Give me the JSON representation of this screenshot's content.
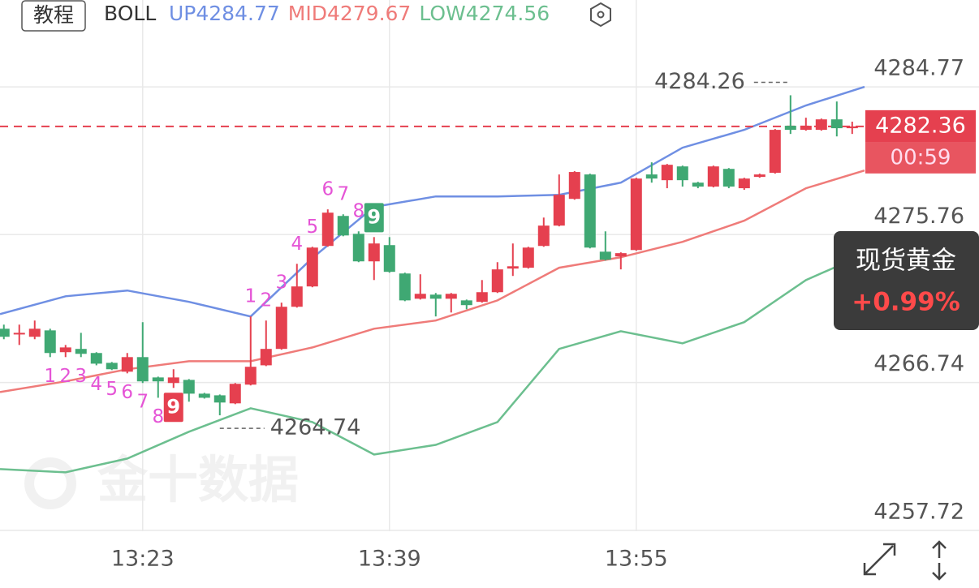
{
  "chart_data": {
    "type": "candlestick",
    "header": {
      "button": "教程",
      "indicator": "BOLL"
    },
    "x": [
      0,
      1,
      2,
      3,
      4,
      5,
      6,
      7,
      8,
      9,
      10,
      11,
      12,
      13,
      14,
      15,
      16,
      17,
      18,
      19,
      20,
      21,
      22,
      23,
      24,
      25,
      26,
      27,
      28,
      29,
      30,
      31,
      32,
      33,
      34,
      35,
      36,
      37,
      38,
      39,
      40,
      41,
      42,
      43,
      44,
      45,
      46,
      47,
      48,
      49,
      50,
      51,
      52,
      53,
      54,
      55
    ],
    "open": [
      4270.02,
      4269.67,
      4269.53,
      4269.92,
      4268.59,
      4268.79,
      4268.54,
      4267.94,
      4267.4,
      4268.29,
      4267.05,
      4266.71,
      4266.9,
      4266.06,
      4265.96,
      4265.47,
      4266.61,
      4267.79,
      4268.79,
      4271.36,
      4272.6,
      4275.07,
      4276.9,
      4275.81,
      4274.13,
      4275.12,
      4273.39,
      4271.85,
      4272.1,
      4271.85,
      4271.75,
      4271.66,
      4272.25,
      4273.69,
      4273.74,
      4275.07,
      4276.31,
      4277.94,
      4279.43,
      4274.72,
      4274.43,
      4274.82,
      4279.43,
      4279.08,
      4279.92,
      4278.93,
      4278.69,
      4279.77,
      4278.59,
      4279.28,
      4279.53,
      4282.4,
      4282.15,
      4282.15,
      4282.79,
      4282.25
    ],
    "high": [
      4270.27,
      4270.27,
      4270.52,
      4270.02,
      4269.03,
      4269.77,
      4268.59,
      4267.99,
      4268.54,
      4270.42,
      4267.1,
      4267.55,
      4266.95,
      4266.11,
      4266.01,
      4266.71,
      4270.77,
      4270.52,
      4271.61,
      4273.98,
      4275.02,
      4277.3,
      4277.0,
      4275.96,
      4275.61,
      4275.61,
      4273.44,
      4273.34,
      4272.2,
      4272.2,
      4271.8,
      4272.99,
      4274.08,
      4275.22,
      4275.02,
      4276.8,
      4279.43,
      4279.63,
      4279.48,
      4275.96,
      4274.68,
      4279.23,
      4280.17,
      4280.07,
      4279.97,
      4278.98,
      4279.97,
      4279.82,
      4279.23,
      4279.48,
      4282.2,
      4284.26,
      4282.89,
      4282.84,
      4283.88,
      4282.65
    ],
    "low": [
      4269.38,
      4269.03,
      4269.38,
      4268.29,
      4268.29,
      4268.29,
      4267.79,
      4267.5,
      4267.3,
      4266.71,
      4265.81,
      4266.41,
      4265.57,
      4265.76,
      4264.74,
      4265.42,
      4266.56,
      4267.74,
      4268.74,
      4271.31,
      4272.55,
      4275.02,
      4275.66,
      4274.08,
      4272.99,
      4273.44,
      4271.7,
      4271.8,
      4270.77,
      4271.01,
      4271.21,
      4271.61,
      4272.2,
      4273.24,
      4273.69,
      4275.02,
      4276.26,
      4277.89,
      4274.92,
      4274.18,
      4273.64,
      4274.77,
      4278.93,
      4278.59,
      4278.69,
      4278.59,
      4278.64,
      4278.59,
      4278.49,
      4279.23,
      4279.48,
      4281.9,
      4282.1,
      4282.1,
      4281.75,
      4281.9
    ],
    "close": [
      4269.53,
      4269.77,
      4270.02,
      4268.54,
      4268.88,
      4268.49,
      4267.89,
      4267.55,
      4268.29,
      4266.81,
      4266.81,
      4267.05,
      4266.06,
      4265.81,
      4265.52,
      4266.66,
      4267.7,
      4268.79,
      4271.36,
      4272.6,
      4274.97,
      4277.1,
      4275.71,
      4274.13,
      4275.22,
      4273.49,
      4271.75,
      4272.15,
      4271.85,
      4272.15,
      4271.46,
      4272.25,
      4273.64,
      4273.83,
      4274.97,
      4276.31,
      4278.19,
      4279.58,
      4274.97,
      4274.23,
      4274.63,
      4279.18,
      4279.18,
      4280.02,
      4279.08,
      4278.69,
      4279.92,
      4278.69,
      4279.18,
      4279.43,
      4282.15,
      4282.15,
      4282.4,
      4282.79,
      4282.25,
      4282.36
    ],
    "up_color": "#e5404f",
    "down_color": "#3fa873",
    "bands": {
      "x": [
        -0.25,
        4,
        8,
        12,
        16,
        20,
        24,
        28,
        32,
        36,
        40,
        44,
        48,
        52,
        55.8
      ],
      "series": [
        {
          "name": "UP4284.77",
          "color": "#6f8fe3",
          "values": [
            4270.91,
            4272.0,
            4272.35,
            4271.66,
            4270.77,
            4274.33,
            4277.45,
            4278.09,
            4278.09,
            4278.19,
            4278.93,
            4281.06,
            4282.15,
            4283.64,
            4284.77
          ]
        },
        {
          "name": "MID4279.67",
          "color": "#ef7b79",
          "values": [
            4266.16,
            4266.81,
            4267.55,
            4268.04,
            4268.04,
            4268.88,
            4270.02,
            4270.52,
            4271.75,
            4273.74,
            4274.38,
            4275.32,
            4276.61,
            4278.59,
            4279.67
          ]
        },
        {
          "name": "LOW4274.56",
          "color": "#6cbf8f",
          "values": [
            4261.46,
            4261.26,
            4262.1,
            4263.74,
            4265.17,
            4264.33,
            4262.35,
            4262.94,
            4264.33,
            4268.79,
            4269.87,
            4269.13,
            4270.42,
            4272.99,
            4274.56
          ]
        }
      ]
    },
    "td": [
      {
        "count": 1,
        "x": 3,
        "side": "below"
      },
      {
        "count": 2,
        "x": 4,
        "side": "below"
      },
      {
        "count": 3,
        "x": 5,
        "side": "below"
      },
      {
        "count": 4,
        "x": 6,
        "side": "below"
      },
      {
        "count": 5,
        "x": 7,
        "side": "below"
      },
      {
        "count": 6,
        "x": 8,
        "side": "below"
      },
      {
        "count": 7,
        "x": 9,
        "side": "below"
      },
      {
        "count": 8,
        "x": 10,
        "side": "below"
      },
      {
        "count": 9,
        "x": 11,
        "side": "below"
      },
      {
        "count": 1,
        "x": 16,
        "side": "above"
      },
      {
        "count": 2,
        "x": 17,
        "side": "above"
      },
      {
        "count": 3,
        "x": 18,
        "side": "above"
      },
      {
        "count": 4,
        "x": 19,
        "side": "above"
      },
      {
        "count": 5,
        "x": 20,
        "side": "above"
      },
      {
        "count": 6,
        "x": 21,
        "side": "above"
      },
      {
        "count": 7,
        "x": 22,
        "side": "above"
      },
      {
        "count": 8,
        "x": 23,
        "side": "above"
      },
      {
        "count": 9,
        "x": 24,
        "side": "above"
      }
    ],
    "countdown": "00:59",
    "instrument": {
      "name": "现货黄金",
      "change": "+0.99%"
    },
    "watermark": "金十数据",
    "xlim": [
      -0.25,
      55.8
    ],
    "ylim": [
      4257.67,
      4290.07
    ],
    "xticks": [
      {
        "value": 9,
        "label": "13:23"
      },
      {
        "value": 25,
        "label": "13:39"
      },
      {
        "value": 41,
        "label": "13:55"
      }
    ],
    "yticks": [
      4284.77,
      4275.76,
      4266.74,
      4257.72
    ],
    "grid": true
  }
}
